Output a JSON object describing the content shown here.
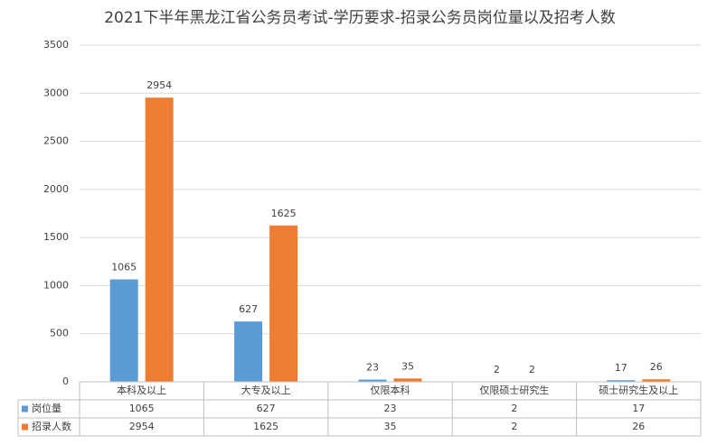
{
  "chart_data": {
    "type": "bar",
    "title": "2021下半年黑龙江省公务员考试-学历要求-招录公务员岗位量以及招考人数",
    "categories": [
      "本科及以上",
      "大专及以上",
      "仅限本科",
      "仅限硕士研究生",
      "硕士研究生及以上"
    ],
    "series": [
      {
        "name": "岗位量",
        "color": "#5b9bd5",
        "values": [
          1065,
          627,
          23,
          2,
          17
        ]
      },
      {
        "name": "招录人数",
        "color": "#ed7d31",
        "values": [
          2954,
          1625,
          35,
          2,
          26
        ]
      }
    ],
    "ylim": [
      0,
      3500
    ],
    "yticks": [
      0,
      500,
      1000,
      1500,
      2000,
      2500,
      3000,
      3500
    ],
    "grid": true
  }
}
